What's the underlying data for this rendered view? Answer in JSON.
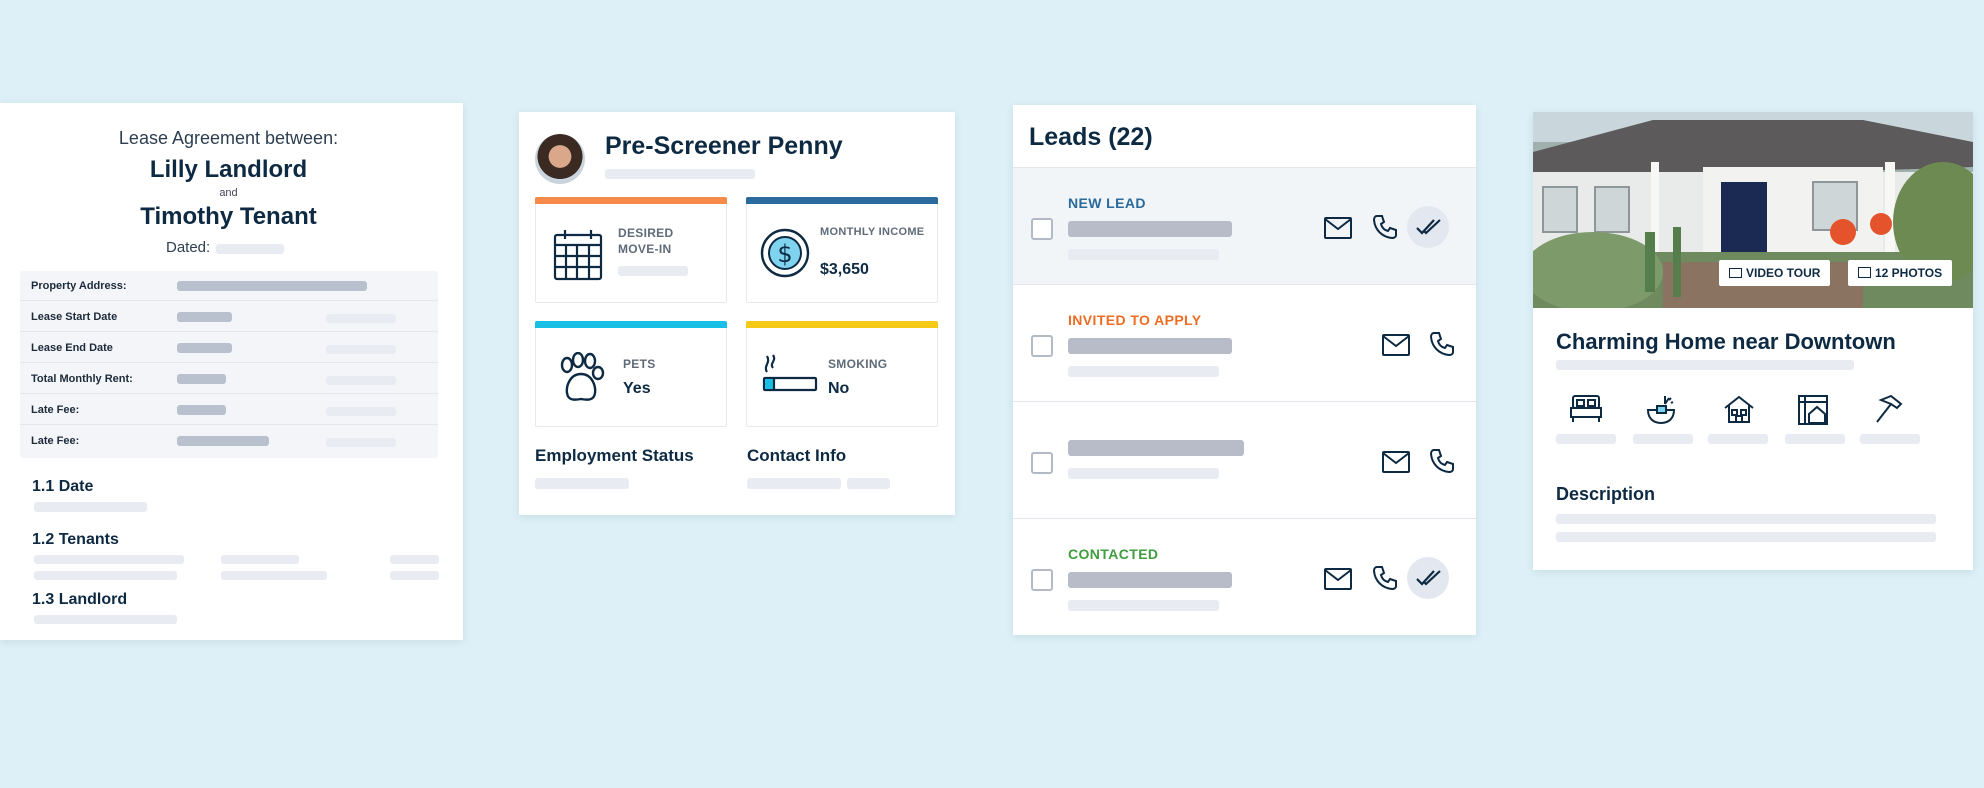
{
  "lease": {
    "intro": "Lease Agreement between:",
    "landlord": "Lilly Landlord",
    "and": "and",
    "tenant": "Timothy Tenant",
    "dated_label": "Dated:",
    "rows": [
      {
        "label": "Property Address:"
      },
      {
        "label": "Lease Start Date"
      },
      {
        "label": "Lease End Date"
      },
      {
        "label": "Total Monthly Rent:"
      },
      {
        "label": "Late Fee:"
      },
      {
        "label": "Late Fee:"
      }
    ],
    "sections": [
      "1.1 Date",
      "1.2 Tenants",
      "1.3 Landlord"
    ]
  },
  "penny": {
    "name": "Pre-Screener Penny",
    "tiles": {
      "move_in": {
        "caption": "DESIRED MOVE-IN",
        "icon": "calendar-icon"
      },
      "income": {
        "caption": "MONTHLY INCOME",
        "value": "$3,650",
        "icon": "dollar-icon"
      },
      "pets": {
        "caption": "PETS",
        "value": "Yes",
        "icon": "paw-icon"
      },
      "smoking": {
        "caption": "SMOKING",
        "value": "No",
        "icon": "cigarette-icon"
      }
    },
    "employment": "Employment Status",
    "contact": "Contact Info",
    "colors": {
      "orange": "#f58a4b",
      "blue": "#2b6a9c",
      "cyan": "#19c0e6",
      "yellow": "#f7c917"
    }
  },
  "leads": {
    "title": "Leads (22)",
    "items": [
      {
        "tag": "NEW LEAD",
        "tag_color": "#2b6a9c",
        "checked_action": true
      },
      {
        "tag": "INVITED TO APPLY",
        "tag_color": "#ee6d25",
        "checked_action": false
      },
      {
        "tag": "",
        "tag_color": "#2b6a9c",
        "checked_action": false
      },
      {
        "tag": "CONTACTED",
        "tag_color": "#3f9d3f",
        "checked_action": true
      }
    ]
  },
  "listing": {
    "video_tour": "VIDEO TOUR",
    "photos": "12 PHOTOS",
    "title": "Charming Home near Downtown",
    "amenities": [
      "bed-icon",
      "bath-icon",
      "house-icon",
      "floorplan-icon",
      "hammer-icon"
    ],
    "description": "Description"
  }
}
